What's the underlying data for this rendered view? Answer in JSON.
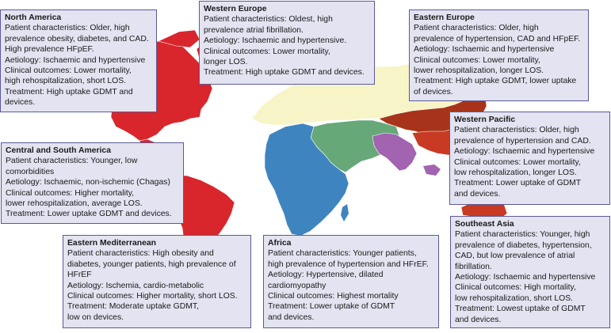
{
  "colors": {
    "north_america": "#d8262c",
    "europe": "#f7f4c8",
    "eastern_europe_asia": "#a7341a",
    "central_south_america": "#d8262c",
    "africa": "#3e85c0",
    "eastern_mediterranean": "#67a878",
    "southeast_asia": "#a263b0",
    "western_pacific": "#c83a24",
    "box_bg": "#e3e3f1",
    "box_border": "#5a5a99"
  },
  "regions": {
    "north_america": {
      "title": "North America",
      "lines": [
        "Patient characteristics: Older, high",
        "prevalence obesity, diabetes, and CAD.",
        "High prevalence HFpEF.",
        "Aetiology: Ischaemic and hypertensive",
        "Clinical outcomes: Lower mortality,",
        "high rehospitalization, short LOS.",
        "Treatment: High uptake GDMT and",
        "devices."
      ]
    },
    "western_europe": {
      "title": "Western Europe",
      "lines": [
        "Patient characteristics: Oldest, high",
        "prevalence atrial fibrillation.",
        "Aetiology: Ischaemic and hypertensive.",
        "Clinical outcomes: Lower mortality,",
        "longer LOS.",
        "Treatment: High uptake GDMT and devices."
      ]
    },
    "eastern_europe": {
      "title": "Eastern Europe",
      "lines": [
        "Patient characteristics: Older, high",
        "prevalence of hypertension, CAD and HFpEF.",
        "Aetiology: Ischaemic and hypertensive",
        "Clinical outcomes: Lower mortality,",
        "lower rehospitalization, longer LOS.",
        "Treatment: High uptake GDMT, lower uptake",
        "of devices."
      ]
    },
    "western_pacific": {
      "title": "Western Pacific",
      "lines": [
        "Patient characteristics: Older, high",
        "prevalence of hypertension and CAD.",
        "Aetiology: Ischaemic and hypertensive",
        "Clinical outcomes: Lower mortality,",
        "low rehospitalization, longer LOS.",
        "Treatment: Lower uptake of GDMT",
        "and devices."
      ]
    },
    "central_south_america": {
      "title": "Central and South America",
      "lines": [
        "Patient characteristics: Younger, low",
        "comorbidities",
        "Aetiology: Ischaemic, non-ischemic (Chagas)",
        "Clinical outcomes: Higher mortality,",
        "lower rehospitalization, average LOS.",
        "Treatment: Lower uptake GDMT and devices."
      ]
    },
    "eastern_mediterranean": {
      "title": "Eastern Mediterranean",
      "lines": [
        "Patient characteristics: High obesity and",
        "diabetes, younger patients, high prevalence of",
        "HFrEF",
        "Aetiology: Ischemia, cardio-metabolic",
        "Clinical outcomes: Higher mortality, short LOS.",
        "Treatment: Moderate uptake GDMT,",
        "low on devices."
      ]
    },
    "africa": {
      "title": "Africa",
      "lines": [
        "Patient characteristics: Younger patients,",
        "high prevalence of hypertension and HFrEF.",
        "Aetiology: Hypertensive, dilated",
        "cardiomyopathy",
        "Clinical outcomes: Highest mortality",
        "Treatment: Lower uptake of GDMT",
        "and devices."
      ]
    },
    "southeast_asia": {
      "title": "Southeast Asia",
      "lines": [
        "Patient characteristics: Younger, high",
        "prevalence of diabetes, hypertension,",
        "CAD, but low prevalence of atrial",
        "fibrillation.",
        "Aetiology: Ischaemic and hypertensive",
        "Clinical outcomes: High mortality,",
        "low rehospitalization, short LOS.",
        "Treatment: Lowest uptake of GDMT",
        "and devices."
      ]
    }
  }
}
